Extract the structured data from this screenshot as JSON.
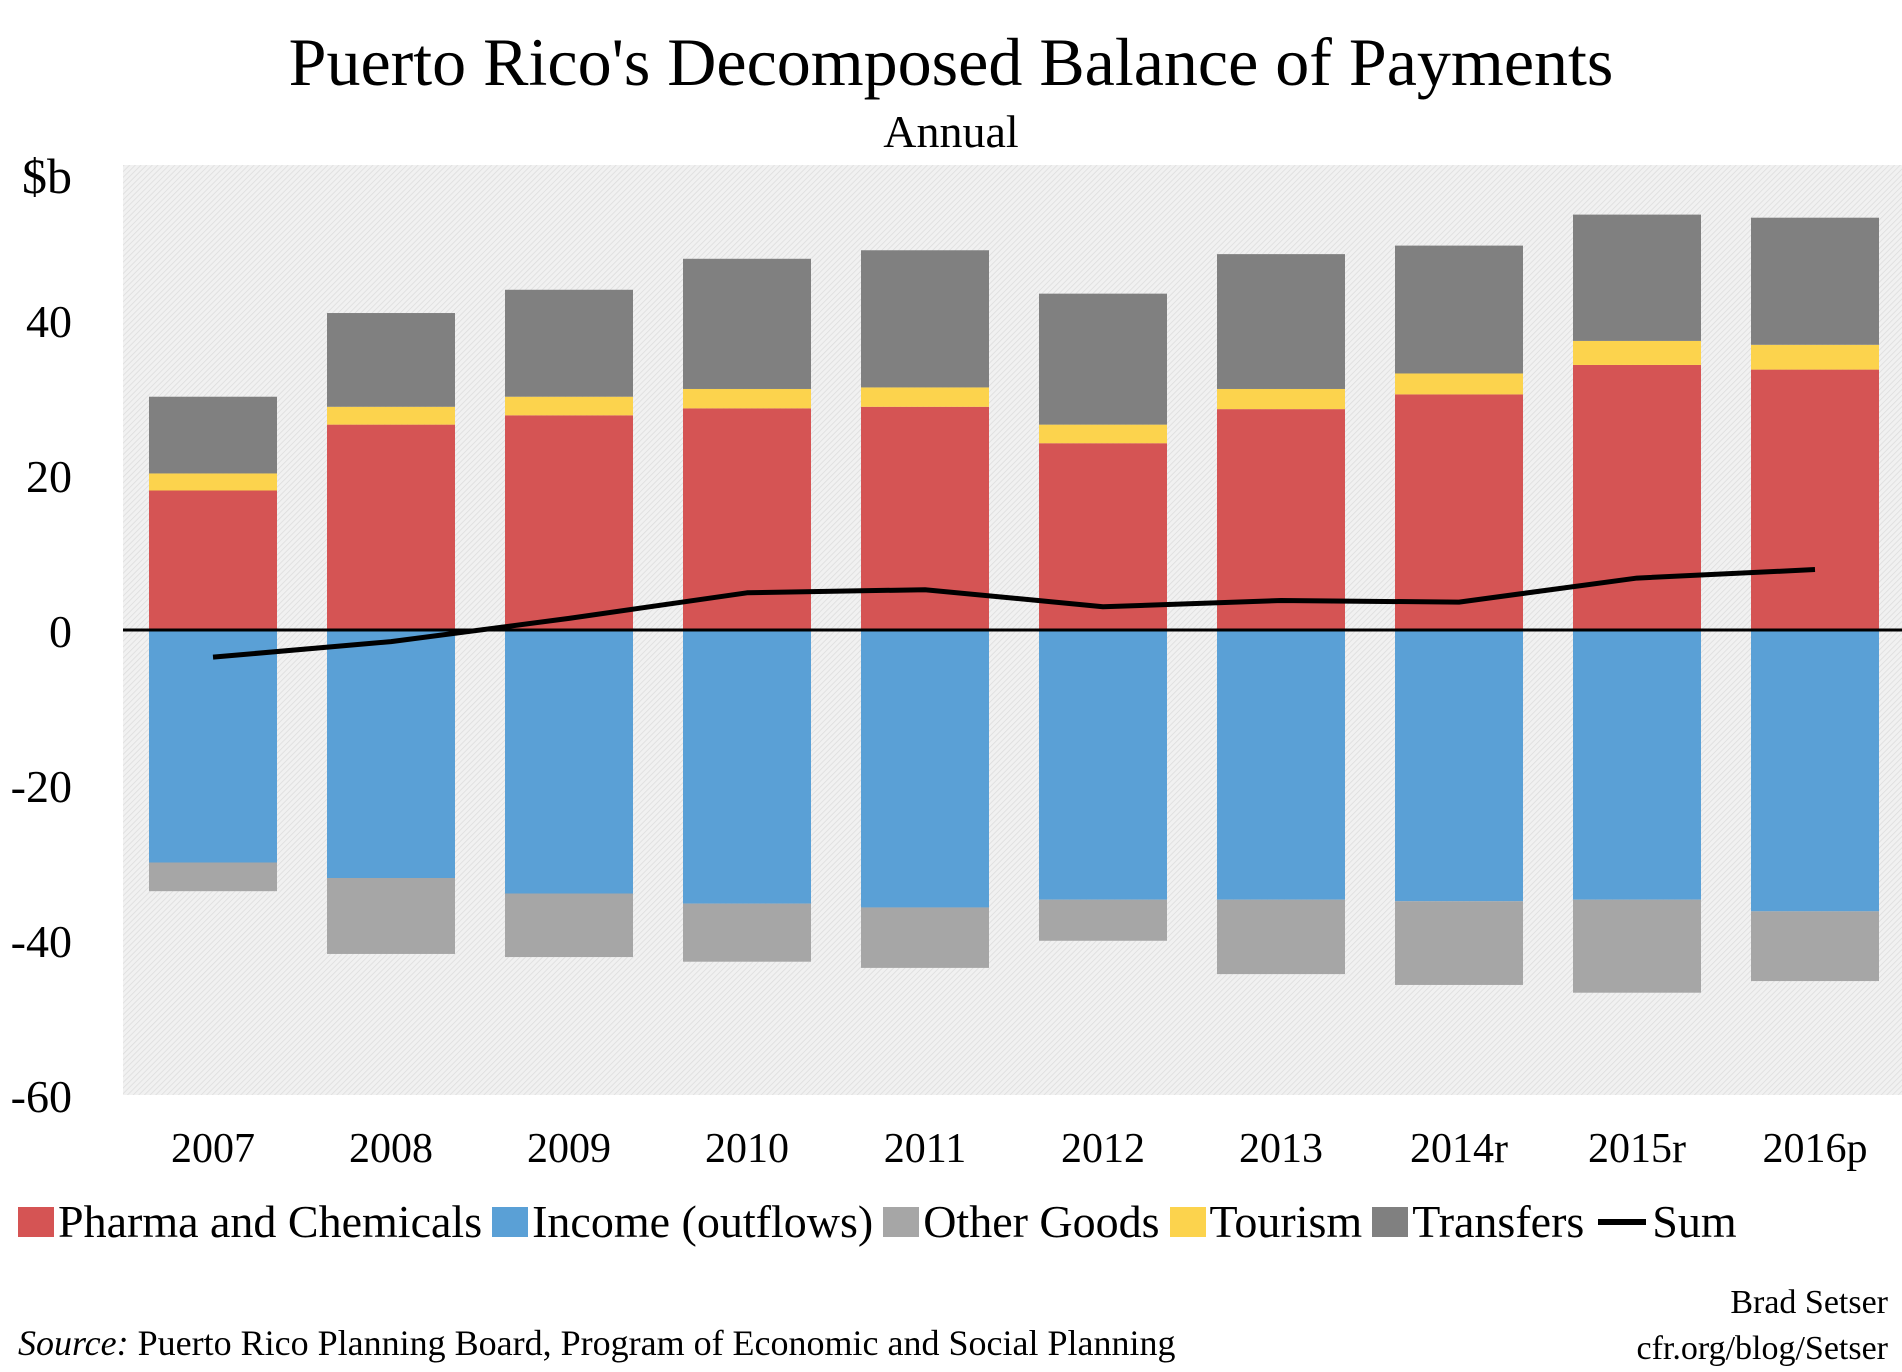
{
  "chart_data": {
    "type": "bar",
    "stacked": true,
    "title": "Puerto Rico's Decomposed Balance of Payments",
    "subtitle": "Annual",
    "ylabel": "$b",
    "ylim": [
      -60,
      60
    ],
    "yticks": [
      40,
      20,
      0,
      -20,
      -40,
      -60
    ],
    "grid": false,
    "legend_position": "bottom",
    "categories": [
      "2007",
      "2008",
      "2009",
      "2010",
      "2011",
      "2012",
      "2013",
      "2014r",
      "2015r",
      "2016p"
    ],
    "series": [
      {
        "name": "Pharma and Chemicals",
        "color": "#d55454",
        "values": [
          18,
          26.5,
          27.7,
          28.6,
          28.8,
          24.1,
          28.5,
          30.4,
          34.2,
          33.6
        ]
      },
      {
        "name": "Tourism",
        "color": "#fcd34d",
        "values": [
          2.2,
          2.3,
          2.4,
          2.5,
          2.5,
          2.4,
          2.6,
          2.7,
          3.1,
          3.2
        ]
      },
      {
        "name": "Transfers",
        "color": "#808080",
        "values": [
          9.9,
          12.1,
          13.8,
          16.8,
          17.7,
          16.9,
          17.4,
          16.5,
          16.3,
          16.4
        ]
      },
      {
        "name": "Income (outflows)",
        "color": "#5aa0d6",
        "values": [
          -30,
          -32,
          -34,
          -35.3,
          -35.8,
          -34.8,
          -34.8,
          -35,
          -34.8,
          -36.3
        ]
      },
      {
        "name": "Other Goods",
        "color": "#a6a6a6",
        "values": [
          -3.7,
          -9.8,
          -8.2,
          -7.5,
          -7.8,
          -5.3,
          -9.6,
          -10.8,
          -12,
          -9
        ]
      },
      {
        "name": "Sum",
        "type": "line",
        "color": "#000000",
        "values": [
          -3.5,
          -1.5,
          1.5,
          4.8,
          5.2,
          3,
          3.8,
          3.6,
          6.7,
          7.8
        ]
      }
    ]
  },
  "legend": {
    "items": [
      {
        "label": "Pharma and Chemicals",
        "color": "#d55454",
        "kind": "box"
      },
      {
        "label": "Income (outflows)",
        "color": "#5aa0d6",
        "kind": "box"
      },
      {
        "label": "Other Goods",
        "color": "#a6a6a6",
        "kind": "box"
      },
      {
        "label": "Tourism",
        "color": "#fcd34d",
        "kind": "box"
      },
      {
        "label": "Transfers",
        "color": "#808080",
        "kind": "box"
      },
      {
        "label": "Sum",
        "color": "#000000",
        "kind": "line"
      }
    ]
  },
  "credit": {
    "author": "Brad Setser",
    "site": "cfr.org/blog/Setser"
  },
  "source": {
    "prefix": "Source:",
    "text": " Puerto Rico Planning Board, Program of Economic and Social Planning"
  }
}
